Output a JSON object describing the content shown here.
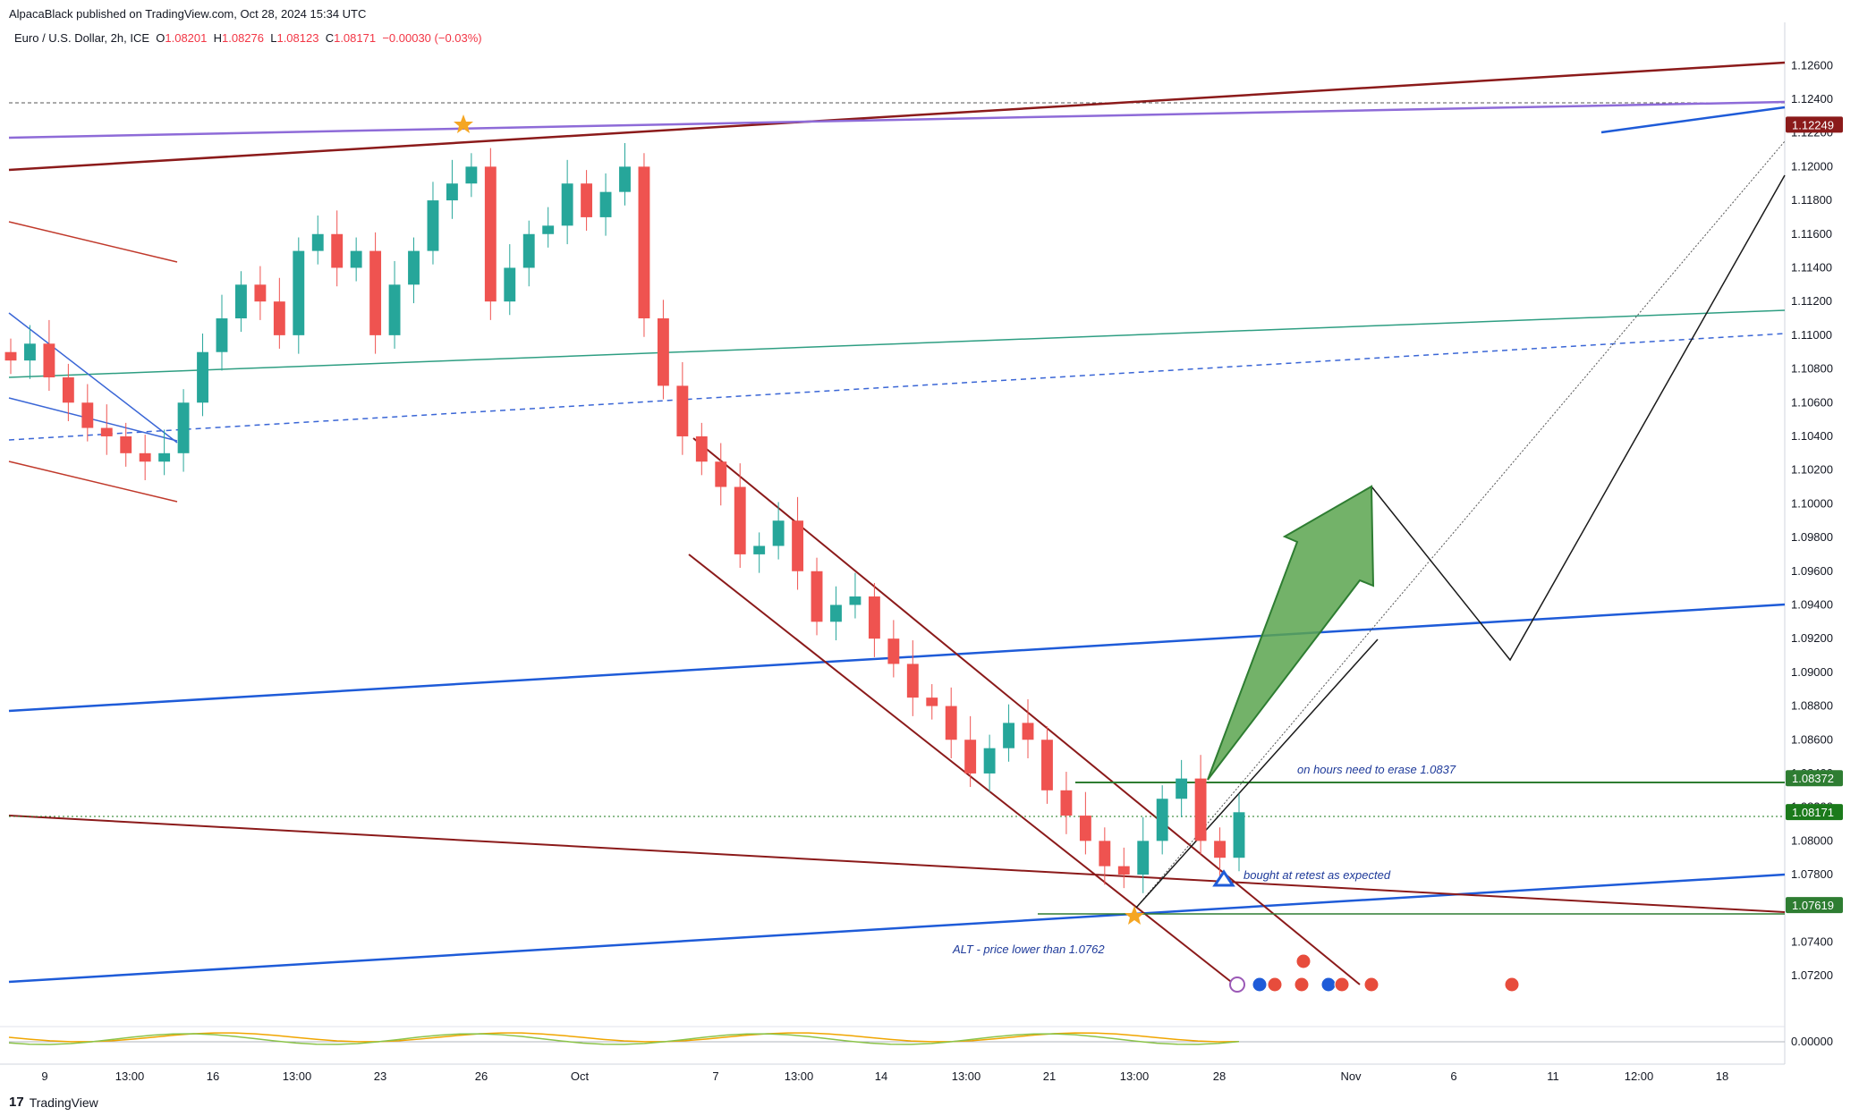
{
  "header": {
    "publisher": "AlpacaBlack published on TradingView.com, Oct 28, 2024 15:34 UTC",
    "symbol": "Euro / U.S. Dollar, 2h, ICE",
    "open_label": "O",
    "open": "1.08201",
    "high_label": "H",
    "high": "1.08276",
    "low_label": "L",
    "low": "1.08123",
    "close_label": "C",
    "close": "1.08171",
    "change": "−0.00030 (−0.03%)"
  },
  "footer": {
    "brand": "TradingView",
    "logo": "17"
  },
  "colors": {
    "up": "#26a69a",
    "down": "#ef5350",
    "darkred": "#8b1a1a",
    "blue": "#1e5bd8",
    "purple": "#8e6bd8",
    "teal": "#2e9e82",
    "green": "#2e7d32",
    "arrow": "#5aa54f"
  },
  "chart_data": {
    "type": "candlestick",
    "timeframe": "2h",
    "y_range": [
      1.071,
      1.1275
    ],
    "y_ticks": [
      "1.12600",
      "1.12400",
      "1.12200",
      "1.12000",
      "1.11800",
      "1.11600",
      "1.11400",
      "1.11200",
      "1.11000",
      "1.10800",
      "1.10600",
      "1.10400",
      "1.10200",
      "1.10000",
      "1.09800",
      "1.09600",
      "1.09400",
      "1.09200",
      "1.09000",
      "1.08800",
      "1.08600",
      "1.08400",
      "1.08200",
      "1.08000",
      "1.07800",
      "1.07600",
      "1.07400",
      "1.07200"
    ],
    "x_ticks": [
      "9",
      "13:00",
      "16",
      "13:00",
      "23",
      "26",
      "Oct",
      "7",
      "13:00",
      "14",
      "13:00",
      "21",
      "13:00",
      "28",
      "Nov",
      "6",
      "11",
      "12:00",
      "18"
    ],
    "approx_closes": [
      1.1085,
      1.1095,
      1.1075,
      1.106,
      1.1045,
      1.104,
      1.103,
      1.1025,
      1.103,
      1.106,
      1.109,
      1.111,
      1.113,
      1.112,
      1.11,
      1.115,
      1.116,
      1.114,
      1.115,
      1.11,
      1.113,
      1.115,
      1.118,
      1.119,
      1.12,
      1.112,
      1.114,
      1.116,
      1.1165,
      1.119,
      1.117,
      1.1185,
      1.12,
      1.111,
      1.107,
      1.104,
      1.1025,
      1.101,
      1.097,
      1.0975,
      1.099,
      1.096,
      1.093,
      1.094,
      1.0945,
      1.092,
      1.0905,
      1.0885,
      1.088,
      1.086,
      1.084,
      1.0855,
      1.087,
      1.086,
      1.083,
      1.0815,
      1.08,
      1.0785,
      1.078,
      1.08,
      1.0825,
      1.0837,
      1.08,
      1.079,
      1.0817
    ],
    "price_labels": [
      {
        "value": "1.12249",
        "color": "#8b1a1a"
      },
      {
        "value": "1.08372",
        "color": "#2e7d32"
      },
      {
        "value": "1.08171",
        "color": "#1b7a1b"
      },
      {
        "value": "1.07619",
        "color": "#2e7d32"
      }
    ],
    "annotations": [
      "on hours need to erase 1.0837",
      "bought at retest as expected",
      "ALT - price lower than 1.0762"
    ],
    "oscillator_value": "0.00000",
    "grid": false
  }
}
